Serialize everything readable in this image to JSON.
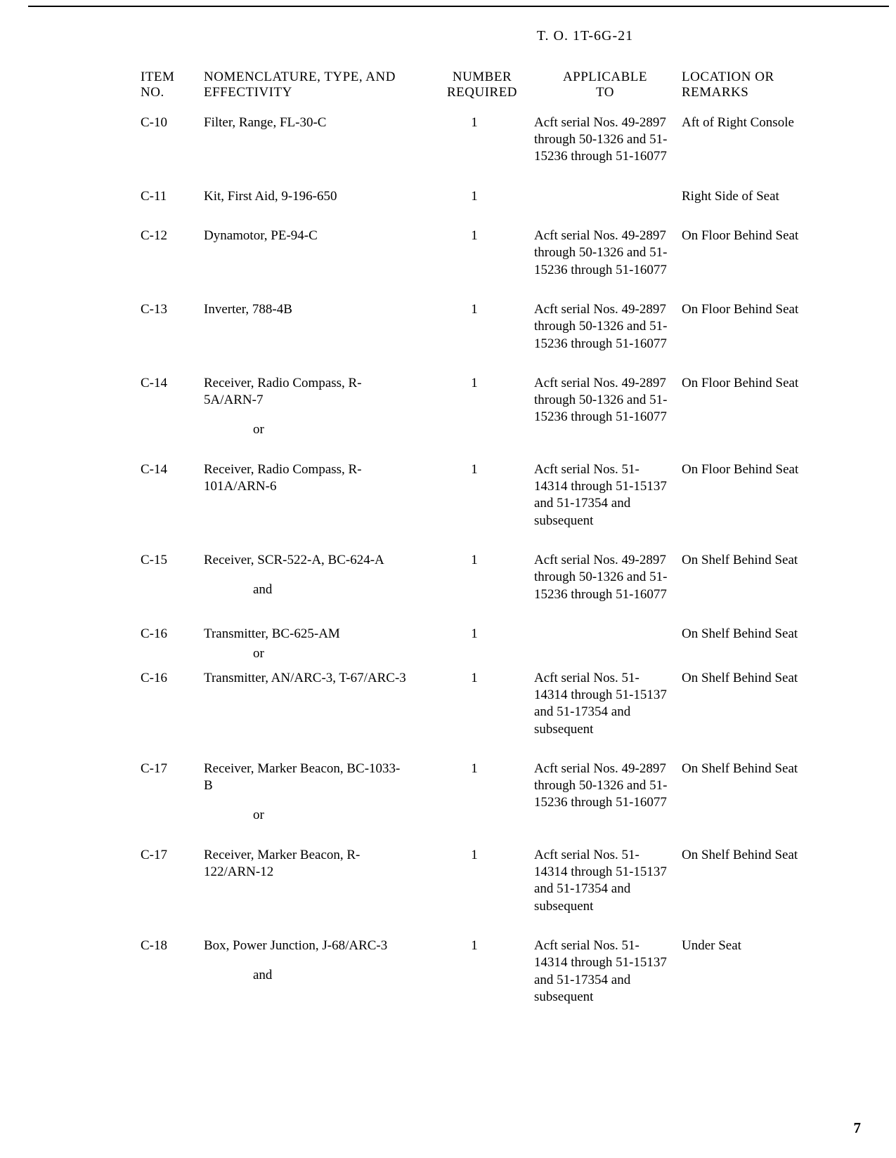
{
  "doc": {
    "header": "T. O. 1T-6G-21",
    "page_number": "7",
    "columns": {
      "item": "ITEM\nNO.",
      "nom": "NOMENCLATURE, TYPE, AND\nEFFECTIVITY",
      "num": "NUMBER\nREQUIRED",
      "app": "APPLICABLE\nTO",
      "loc": "LOCATION OR REMARKS"
    },
    "rows": [
      {
        "item": "C-10",
        "nom": "Filter, Range, FL-30-C",
        "num": "1",
        "app": "Acft serial Nos. 49-2897 through 50-1326 and 51-15236 through 51-16077",
        "loc": "Aft of Right Console"
      },
      {
        "item": "C-11",
        "nom": "Kit, First Aid, 9-196-650",
        "num": "1",
        "app": "",
        "loc": "Right Side of Seat"
      },
      {
        "item": "C-12",
        "nom": "Dynamotor, PE-94-C",
        "num": "1",
        "app": "Acft serial Nos. 49-2897 through 50-1326 and 51-15236 through 51-16077",
        "loc": "On Floor Behind Seat"
      },
      {
        "item": "C-13",
        "nom": "Inverter, 788-4B",
        "num": "1",
        "app": "Acft serial Nos. 49-2897 through 50-1326 and 51-15236 through 51-16077",
        "loc": "On Floor Behind Seat"
      },
      {
        "item": "C-14",
        "nom": "Receiver, Radio Compass, R-5A/ARN-7",
        "conj": "or",
        "num": "1",
        "app": "Acft serial Nos. 49-2897 through 50-1326 and 51-15236 through 51-16077",
        "loc": "On Floor Behind Seat"
      },
      {
        "item": "C-14",
        "nom": "Receiver, Radio Compass, R-101A/ARN-6",
        "num": "1",
        "app": "Acft serial Nos. 51-14314 through 51-15137 and 51-17354 and subsequent",
        "loc": "On Floor Behind Seat"
      },
      {
        "item": "C-15",
        "nom": "Receiver, SCR-522-A, BC-624-A",
        "conj": "and",
        "num": "1",
        "app": "Acft serial Nos. 49-2897 through 50-1326 and 51-15236 through 51-16077",
        "loc": "On Shelf Behind Seat"
      },
      {
        "item": "C-16",
        "nom": "Transmitter, BC-625-AM",
        "conj": "or",
        "conj_tight": true,
        "num": "1",
        "app": "",
        "loc": "On Shelf Behind Seat"
      },
      {
        "item": "C-16",
        "nom": "Transmitter, AN/ARC-3, T-67/ARC-3",
        "num": "1",
        "app": "Acft serial Nos. 51-14314 through 51-15137 and 51-17354 and subsequent",
        "loc": "On Shelf Behind Seat"
      },
      {
        "item": "C-17",
        "nom": "Receiver, Marker Beacon, BC-1033-B",
        "conj": "or",
        "num": "1",
        "app": "Acft serial Nos. 49-2897 through 50-1326 and 51-15236 through 51-16077",
        "loc": "On Shelf Behind Seat"
      },
      {
        "item": "C-17",
        "nom": "Receiver, Marker Beacon, R-122/ARN-12",
        "num": "1",
        "app": "Acft serial Nos. 51-14314 through 51-15137 and 51-17354 and subsequent",
        "loc": "On Shelf Behind Seat"
      },
      {
        "item": "C-18",
        "nom": "Box, Power Junction, J-68/ARC-3",
        "conj": "and",
        "num": "1",
        "app": "Acft serial Nos. 51-14314 through 51-15137 and 51-17354 and subsequent",
        "loc": "Under Seat"
      }
    ]
  }
}
